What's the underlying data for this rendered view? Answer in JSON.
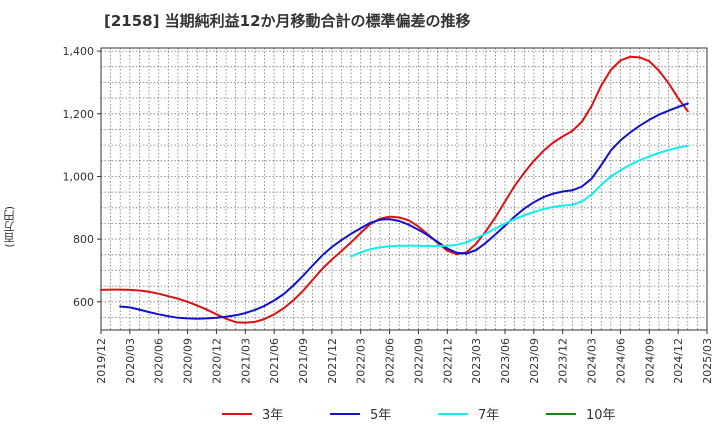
{
  "title": "[2158]  当期純利益12か月移動合計の標準偏差の推移",
  "chart_data": {
    "type": "line",
    "title": "[2158]  当期純利益12か月移動合計の標準偏差の推移",
    "ylabel": "(百万円)",
    "xlabel": "",
    "ylim": [
      510,
      1410
    ],
    "xlim": [
      "2019/12",
      "2025/03"
    ],
    "yticks": [
      600,
      800,
      1000,
      1200,
      1400
    ],
    "ytick_labels": [
      "600",
      "800",
      "1,000",
      "1,200",
      "1,400"
    ],
    "xtick_labels": [
      "2019/12",
      "2020/03",
      "2020/06",
      "2020/09",
      "2020/12",
      "2021/03",
      "2021/06",
      "2021/09",
      "2021/12",
      "2022/03",
      "2022/06",
      "2022/09",
      "2022/12",
      "2023/03",
      "2023/06",
      "2023/09",
      "2023/12",
      "2024/03",
      "2024/06",
      "2024/09",
      "2024/12",
      "2025/03"
    ],
    "grid": true,
    "legend_position": "bottom",
    "series": [
      {
        "name": "3年",
        "color": "#dd1111",
        "points": [
          [
            "2019/12",
            638
          ],
          [
            "2020/01",
            639
          ],
          [
            "2020/02",
            639
          ],
          [
            "2020/03",
            638
          ],
          [
            "2020/04",
            636
          ],
          [
            "2020/05",
            632
          ],
          [
            "2020/06",
            626
          ],
          [
            "2020/07",
            618
          ],
          [
            "2020/08",
            610
          ],
          [
            "2020/09",
            600
          ],
          [
            "2020/10",
            588
          ],
          [
            "2020/11",
            575
          ],
          [
            "2020/12",
            560
          ],
          [
            "2021/01",
            546
          ],
          [
            "2021/02",
            535
          ],
          [
            "2021/03",
            533
          ],
          [
            "2021/04",
            536
          ],
          [
            "2021/05",
            545
          ],
          [
            "2021/06",
            560
          ],
          [
            "2021/07",
            580
          ],
          [
            "2021/08",
            605
          ],
          [
            "2021/09",
            635
          ],
          [
            "2021/10",
            670
          ],
          [
            "2021/11",
            705
          ],
          [
            "2021/12",
            735
          ],
          [
            "2022/01",
            762
          ],
          [
            "2022/02",
            790
          ],
          [
            "2022/03",
            820
          ],
          [
            "2022/04",
            848
          ],
          [
            "2022/05",
            865
          ],
          [
            "2022/06",
            872
          ],
          [
            "2022/07",
            869
          ],
          [
            "2022/08",
            860
          ],
          [
            "2022/09",
            840
          ],
          [
            "2022/10",
            815
          ],
          [
            "2022/11",
            788
          ],
          [
            "2022/12",
            763
          ],
          [
            "2023/01",
            752
          ],
          [
            "2023/02",
            758
          ],
          [
            "2023/03",
            785
          ],
          [
            "2023/04",
            825
          ],
          [
            "2023/05",
            870
          ],
          [
            "2023/06",
            920
          ],
          [
            "2023/07",
            970
          ],
          [
            "2023/08",
            1012
          ],
          [
            "2023/09",
            1050
          ],
          [
            "2023/10",
            1082
          ],
          [
            "2023/11",
            1108
          ],
          [
            "2023/12",
            1128
          ],
          [
            "2024/01",
            1145
          ],
          [
            "2024/02",
            1175
          ],
          [
            "2024/03",
            1225
          ],
          [
            "2024/04",
            1290
          ],
          [
            "2024/05",
            1340
          ],
          [
            "2024/06",
            1370
          ],
          [
            "2024/07",
            1382
          ],
          [
            "2024/08",
            1380
          ],
          [
            "2024/09",
            1368
          ],
          [
            "2024/10",
            1338
          ],
          [
            "2024/11",
            1298
          ],
          [
            "2024/12",
            1250
          ],
          [
            "2025/01",
            1208
          ]
        ]
      },
      {
        "name": "5年",
        "color": "#1111cc",
        "points": [
          [
            "2020/02",
            585
          ],
          [
            "2020/03",
            582
          ],
          [
            "2020/04",
            575
          ],
          [
            "2020/05",
            567
          ],
          [
            "2020/06",
            560
          ],
          [
            "2020/07",
            554
          ],
          [
            "2020/08",
            549
          ],
          [
            "2020/09",
            547
          ],
          [
            "2020/10",
            546
          ],
          [
            "2020/11",
            547
          ],
          [
            "2020/12",
            549
          ],
          [
            "2021/01",
            552
          ],
          [
            "2021/02",
            557
          ],
          [
            "2021/03",
            564
          ],
          [
            "2021/04",
            574
          ],
          [
            "2021/05",
            587
          ],
          [
            "2021/06",
            604
          ],
          [
            "2021/07",
            625
          ],
          [
            "2021/08",
            652
          ],
          [
            "2021/09",
            683
          ],
          [
            "2021/10",
            716
          ],
          [
            "2021/11",
            748
          ],
          [
            "2021/12",
            775
          ],
          [
            "2022/01",
            797
          ],
          [
            "2022/02",
            817
          ],
          [
            "2022/03",
            835
          ],
          [
            "2022/04",
            852
          ],
          [
            "2022/05",
            862
          ],
          [
            "2022/06",
            864
          ],
          [
            "2022/07",
            858
          ],
          [
            "2022/08",
            846
          ],
          [
            "2022/09",
            830
          ],
          [
            "2022/10",
            812
          ],
          [
            "2022/11",
            791
          ],
          [
            "2022/12",
            770
          ],
          [
            "2023/01",
            756
          ],
          [
            "2023/02",
            754
          ],
          [
            "2023/03",
            765
          ],
          [
            "2023/04",
            788
          ],
          [
            "2023/05",
            815
          ],
          [
            "2023/06",
            843
          ],
          [
            "2023/07",
            872
          ],
          [
            "2023/08",
            897
          ],
          [
            "2023/09",
            918
          ],
          [
            "2023/10",
            934
          ],
          [
            "2023/11",
            945
          ],
          [
            "2023/12",
            952
          ],
          [
            "2024/01",
            956
          ],
          [
            "2024/02",
            968
          ],
          [
            "2024/03",
            993
          ],
          [
            "2024/04",
            1036
          ],
          [
            "2024/05",
            1083
          ],
          [
            "2024/06",
            1115
          ],
          [
            "2024/07",
            1140
          ],
          [
            "2024/08",
            1162
          ],
          [
            "2024/09",
            1181
          ],
          [
            "2024/10",
            1197
          ],
          [
            "2024/11",
            1210
          ],
          [
            "2024/12",
            1222
          ],
          [
            "2025/01",
            1233
          ]
        ]
      },
      {
        "name": "7年",
        "color": "#11eeee",
        "points": [
          [
            "2022/02",
            745
          ],
          [
            "2022/03",
            758
          ],
          [
            "2022/04",
            768
          ],
          [
            "2022/05",
            774
          ],
          [
            "2022/06",
            777
          ],
          [
            "2022/07",
            779
          ],
          [
            "2022/08",
            779
          ],
          [
            "2022/09",
            779
          ],
          [
            "2022/10",
            778
          ],
          [
            "2022/11",
            778
          ],
          [
            "2022/12",
            779
          ],
          [
            "2023/01",
            782
          ],
          [
            "2023/02",
            790
          ],
          [
            "2023/03",
            803
          ],
          [
            "2023/04",
            818
          ],
          [
            "2023/05",
            834
          ],
          [
            "2023/06",
            850
          ],
          [
            "2023/07",
            864
          ],
          [
            "2023/08",
            876
          ],
          [
            "2023/09",
            887
          ],
          [
            "2023/10",
            896
          ],
          [
            "2023/11",
            903
          ],
          [
            "2023/12",
            907
          ],
          [
            "2024/01",
            910
          ],
          [
            "2024/02",
            920
          ],
          [
            "2024/03",
            942
          ],
          [
            "2024/04",
            973
          ],
          [
            "2024/05",
            1000
          ],
          [
            "2024/06",
            1020
          ],
          [
            "2024/07",
            1037
          ],
          [
            "2024/08",
            1052
          ],
          [
            "2024/09",
            1064
          ],
          [
            "2024/10",
            1075
          ],
          [
            "2024/11",
            1084
          ],
          [
            "2024/12",
            1092
          ],
          [
            "2025/01",
            1098
          ]
        ]
      },
      {
        "name": "10年",
        "color": "#118811",
        "points": []
      }
    ]
  }
}
